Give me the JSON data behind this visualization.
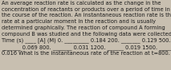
{
  "text": "An average reaction rate is calculated as the change in the\nconcentration of reactants or products over a period of time in\nthe course of the reaction. An instantaneous reaction rate is the\nrate at a particular moment in the reaction and is usually\ndetermined graphically. The reaction of compound A forming\ncompound B was studied and the following data were collected:\nTime (s) ____ [A] (M) 0. _________ 0.184 200. _______ 0.129 500.\n_______ 0.069 800. _______ 0.031 1200. ______ 0.019 1500. ______\n0.016 What is the instantaneous rate of the reaction at t=800. s?",
  "font_size": 4.8,
  "bg_color": "#c8bfb0",
  "text_color": "#1a1a1a",
  "fig_width": 2.13,
  "fig_height": 0.88,
  "dpi": 100,
  "linespacing": 1.35
}
